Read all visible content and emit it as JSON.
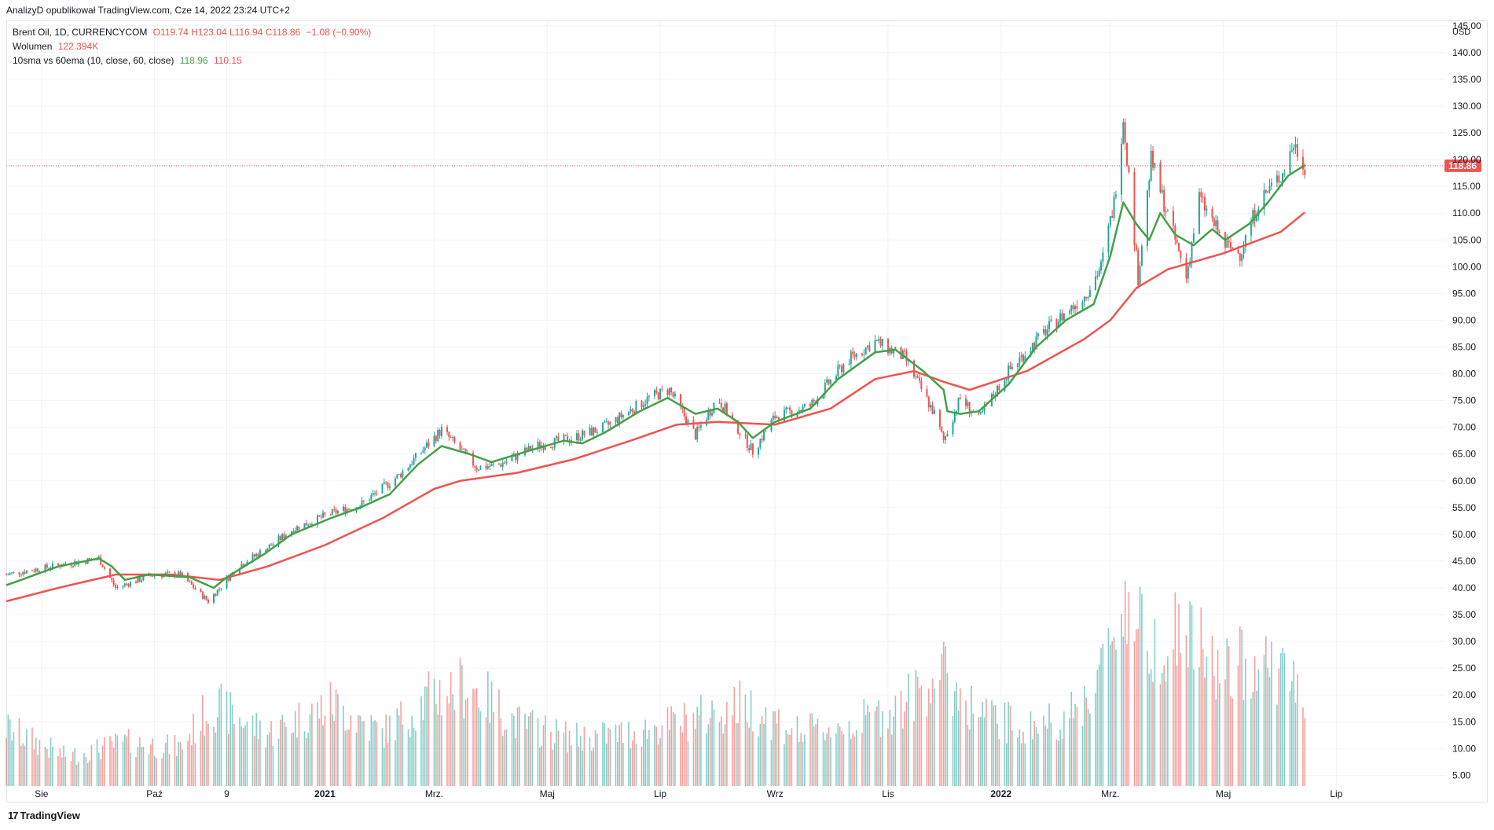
{
  "header": {
    "published": "AnalizyD opublikował TradingView.com, Cze 14, 2022 23:24 UTC+2"
  },
  "legend": {
    "symbol": "Brent Oil, 1D, CURRENCYCOM",
    "ohlc": [
      {
        "label": "O",
        "value": "119.74"
      },
      {
        "label": "H",
        "value": "123.04"
      },
      {
        "label": "L",
        "value": "116.94"
      },
      {
        "label": "C",
        "value": "118.86"
      }
    ],
    "change": "−1.08 (−0.90%)",
    "volume_label": "Wolumen",
    "volume_value": "122.394K",
    "indicator_label": "10sma vs 60ema (10, close, 60, close)",
    "indicator_sma": "118.96",
    "indicator_ema": "110.15"
  },
  "price_axis": {
    "currency": "USD",
    "last_price_tag": "118.86"
  },
  "footer": {
    "brand": "TradingView",
    "logo_glyph": "17"
  },
  "colors": {
    "up": "#26a69a",
    "down": "#ef5350",
    "sma": "#43a047",
    "ema": "#ef5350",
    "grid": "#f0f3fa",
    "axis_text": "#131722",
    "price_line": "#ef5350"
  },
  "chart_data": {
    "type": "line",
    "title": "Brent Oil, 1D, CURRENCYCOM",
    "y_axis": {
      "label": "USD",
      "ticks": [
        "5.00",
        "10.00",
        "15.00",
        "20.00",
        "25.00",
        "30.00",
        "35.00",
        "40.00",
        "45.00",
        "50.00",
        "55.00",
        "60.00",
        "65.00",
        "70.00",
        "75.00",
        "80.00",
        "85.00",
        "90.00",
        "95.00",
        "100.00",
        "105.00",
        "110.00",
        "115.00",
        "120.00",
        "125.00",
        "130.00",
        "135.00",
        "140.00",
        "145.00"
      ],
      "range": [
        3,
        146
      ]
    },
    "x_axis": {
      "tick_labels": [
        "Sie",
        "Paź",
        "9",
        "2021",
        "Mrz.",
        "Maj",
        "Lip",
        "Wrz",
        "Lis",
        "2022",
        "Mrz.",
        "Maj",
        "Lip"
      ],
      "range": [
        "2020-07-13",
        "2022-08-25"
      ]
    },
    "last_price": 118.86,
    "series": [
      {
        "name": "10sma",
        "color": "#43a047",
        "points": [
          [
            "2020-07-13",
            40.5
          ],
          [
            "2020-08-10",
            44.0
          ],
          [
            "2020-09-01",
            45.5
          ],
          [
            "2020-09-08",
            44.0
          ],
          [
            "2020-09-15",
            41.5
          ],
          [
            "2020-09-28",
            42.5
          ],
          [
            "2020-10-20",
            42.0
          ],
          [
            "2020-11-02",
            40.0
          ],
          [
            "2020-11-09",
            42.0
          ],
          [
            "2020-11-30",
            46.5
          ],
          [
            "2020-12-14",
            50.0
          ],
          [
            "2021-01-04",
            53.0
          ],
          [
            "2021-01-20",
            55.0
          ],
          [
            "2021-02-05",
            57.5
          ],
          [
            "2021-02-20",
            63.0
          ],
          [
            "2021-03-05",
            66.5
          ],
          [
            "2021-03-20",
            65.0
          ],
          [
            "2021-04-01",
            63.5
          ],
          [
            "2021-04-20",
            65.5
          ],
          [
            "2021-05-10",
            67.5
          ],
          [
            "2021-05-20",
            67.0
          ],
          [
            "2021-06-01",
            69.0
          ],
          [
            "2021-06-20",
            73.0
          ],
          [
            "2021-07-05",
            75.5
          ],
          [
            "2021-07-20",
            72.5
          ],
          [
            "2021-08-01",
            73.5
          ],
          [
            "2021-08-12",
            71.0
          ],
          [
            "2021-08-20",
            68.0
          ],
          [
            "2021-09-01",
            71.0
          ],
          [
            "2021-09-20",
            73.5
          ],
          [
            "2021-10-05",
            79.0
          ],
          [
            "2021-10-25",
            84.0
          ],
          [
            "2021-11-05",
            84.5
          ],
          [
            "2021-11-20",
            80.5
          ],
          [
            "2021-12-01",
            77.0
          ],
          [
            "2021-12-03",
            73.0
          ],
          [
            "2021-12-10",
            72.5
          ],
          [
            "2021-12-20",
            73.0
          ],
          [
            "2022-01-05",
            78.0
          ],
          [
            "2022-01-20",
            85.0
          ],
          [
            "2022-02-05",
            90.0
          ],
          [
            "2022-02-20",
            93.0
          ],
          [
            "2022-03-01",
            102.0
          ],
          [
            "2022-03-08",
            112.0
          ],
          [
            "2022-03-15",
            108.0
          ],
          [
            "2022-03-22",
            105.0
          ],
          [
            "2022-03-28",
            110.0
          ],
          [
            "2022-04-05",
            106.0
          ],
          [
            "2022-04-15",
            104.0
          ],
          [
            "2022-04-25",
            107.0
          ],
          [
            "2022-05-02",
            105.0
          ],
          [
            "2022-05-15",
            108.0
          ],
          [
            "2022-05-25",
            112.0
          ],
          [
            "2022-06-05",
            117.0
          ],
          [
            "2022-06-14",
            118.96
          ]
        ]
      },
      {
        "name": "60ema",
        "color": "#ef5350",
        "points": [
          [
            "2020-07-13",
            37.5
          ],
          [
            "2020-08-10",
            40.0
          ],
          [
            "2020-09-10",
            42.5
          ],
          [
            "2020-10-10",
            42.5
          ],
          [
            "2020-11-05",
            41.5
          ],
          [
            "2020-12-01",
            44.0
          ],
          [
            "2021-01-01",
            48.0
          ],
          [
            "2021-02-01",
            53.0
          ],
          [
            "2021-03-01",
            58.5
          ],
          [
            "2021-03-15",
            60.0
          ],
          [
            "2021-04-15",
            61.5
          ],
          [
            "2021-05-15",
            64.0
          ],
          [
            "2021-06-15",
            67.5
          ],
          [
            "2021-07-10",
            70.5
          ],
          [
            "2021-08-01",
            71.0
          ],
          [
            "2021-09-01",
            70.5
          ],
          [
            "2021-10-01",
            73.5
          ],
          [
            "2021-10-25",
            79.0
          ],
          [
            "2021-11-15",
            80.5
          ],
          [
            "2021-12-01",
            78.5
          ],
          [
            "2021-12-15",
            77.0
          ],
          [
            "2022-01-15",
            80.5
          ],
          [
            "2022-02-15",
            86.5
          ],
          [
            "2022-03-01",
            90.0
          ],
          [
            "2022-03-15",
            96.0
          ],
          [
            "2022-04-01",
            99.5
          ],
          [
            "2022-05-01",
            102.5
          ],
          [
            "2022-06-01",
            106.5
          ],
          [
            "2022-06-14",
            110.15
          ]
        ]
      },
      {
        "name": "Brent Oil",
        "color": "#131722",
        "points": [
          [
            "2020-07-13",
            42.5
          ],
          [
            "2020-08-15",
            44.5
          ],
          [
            "2020-09-01",
            45.5
          ],
          [
            "2020-09-10",
            40.0
          ],
          [
            "2020-10-01",
            42.5
          ],
          [
            "2020-10-15",
            42.5
          ],
          [
            "2020-10-30",
            37.5
          ],
          [
            "2020-11-15",
            44.0
          ],
          [
            "2020-12-01",
            47.5
          ],
          [
            "2020-12-15",
            51.0
          ],
          [
            "2021-01-05",
            54.0
          ],
          [
            "2021-01-20",
            55.5
          ],
          [
            "2021-02-10",
            61.0
          ],
          [
            "2021-03-05",
            69.5
          ],
          [
            "2021-03-24",
            62.5
          ],
          [
            "2021-04-05",
            63.0
          ],
          [
            "2021-04-25",
            66.5
          ],
          [
            "2021-05-15",
            68.0
          ],
          [
            "2021-06-01",
            70.0
          ],
          [
            "2021-06-25",
            75.5
          ],
          [
            "2021-07-06",
            77.0
          ],
          [
            "2021-07-20",
            68.5
          ],
          [
            "2021-08-01",
            75.5
          ],
          [
            "2021-08-20",
            65.5
          ],
          [
            "2021-09-01",
            72.0
          ],
          [
            "2021-09-20",
            74.0
          ],
          [
            "2021-10-10",
            82.5
          ],
          [
            "2021-10-25",
            86.0
          ],
          [
            "2021-11-10",
            83.0
          ],
          [
            "2021-11-26",
            72.5
          ],
          [
            "2021-12-01",
            67.5
          ],
          [
            "2021-12-10",
            75.5
          ],
          [
            "2021-12-20",
            71.5
          ],
          [
            "2022-01-05",
            80.5
          ],
          [
            "2022-01-25",
            88.0
          ],
          [
            "2022-02-15",
            94.5
          ],
          [
            "2022-02-24",
            100.0
          ],
          [
            "2022-03-03",
            112.0
          ],
          [
            "2022-03-08",
            128.0
          ],
          [
            "2022-03-16",
            98.0
          ],
          [
            "2022-03-23",
            120.0
          ],
          [
            "2022-04-11",
            98.0
          ],
          [
            "2022-04-18",
            113.0
          ],
          [
            "2022-05-02",
            104.0
          ],
          [
            "2022-05-10",
            102.5
          ],
          [
            "2022-05-20",
            112.0
          ],
          [
            "2022-06-02",
            117.5
          ],
          [
            "2022-06-08",
            123.0
          ],
          [
            "2022-06-14",
            118.86
          ]
        ]
      },
      {
        "name": "Wolumen",
        "color": "#26a69a",
        "points": [
          [
            "2020-07-13",
            12.0
          ],
          [
            "2020-08-15",
            6.0
          ],
          [
            "2020-09-15",
            9.0
          ],
          [
            "2020-10-15",
            8.0
          ],
          [
            "2020-11-01",
            17.0
          ],
          [
            "2020-12-01",
            11.0
          ],
          [
            "2021-01-05",
            17.0
          ],
          [
            "2021-02-01",
            11.0
          ],
          [
            "2021-03-01",
            19.0
          ],
          [
            "2021-03-20",
            21.0
          ],
          [
            "2021-04-15",
            13.0
          ],
          [
            "2021-05-15",
            10.0
          ],
          [
            "2021-06-15",
            11.0
          ],
          [
            "2021-07-20",
            14.0
          ],
          [
            "2021-08-15",
            17.0
          ],
          [
            "2021-09-15",
            11.0
          ],
          [
            "2021-10-15",
            13.0
          ],
          [
            "2021-11-10",
            17.0
          ],
          [
            "2021-11-28",
            24.0
          ],
          [
            "2021-12-20",
            15.0
          ],
          [
            "2022-01-15",
            12.0
          ],
          [
            "2022-02-10",
            15.0
          ],
          [
            "2022-02-28",
            27.0
          ],
          [
            "2022-03-08",
            40.0
          ],
          [
            "2022-03-20",
            30.0
          ],
          [
            "2022-04-10",
            32.0
          ],
          [
            "2022-05-01",
            23.0
          ],
          [
            "2022-05-20",
            27.0
          ],
          [
            "2022-06-14",
            20.0
          ]
        ]
      }
    ]
  }
}
